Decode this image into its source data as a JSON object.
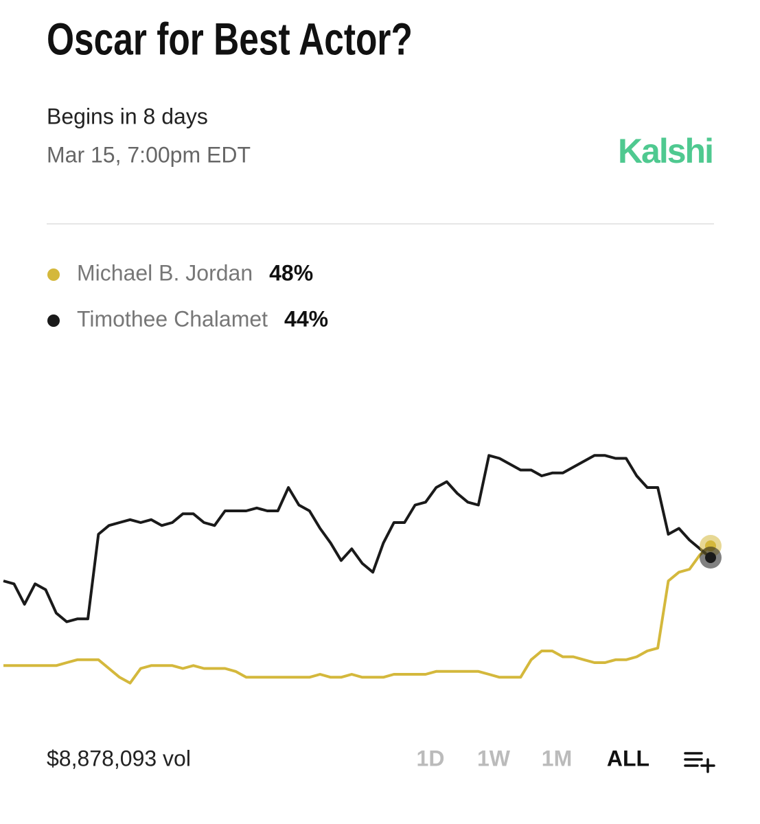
{
  "chart_data": {
    "type": "line",
    "title": "Oscar for Best Actor?",
    "status": "Begins in 8 days",
    "date": "Mar 15, 7:00pm EDT",
    "brand": "Kalshi",
    "volume": "$8,878,093 vol",
    "ranges": [
      "1D",
      "1W",
      "1M",
      "ALL"
    ],
    "active_range": "ALL",
    "ylim": [
      0,
      100
    ],
    "series": [
      {
        "name": "Michael B. Jordan",
        "color": "#d4b83c",
        "value_label": "48%",
        "values": [
          7,
          7,
          7,
          7,
          7,
          7,
          8,
          9,
          9,
          9,
          6,
          3,
          1,
          6,
          7,
          7,
          7,
          6,
          7,
          6,
          6,
          6,
          5,
          3,
          3,
          3,
          3,
          3,
          3,
          3,
          4,
          3,
          3,
          4,
          3,
          3,
          3,
          4,
          4,
          4,
          4,
          5,
          5,
          5,
          5,
          5,
          4,
          3,
          3,
          3,
          9,
          12,
          12,
          10,
          10,
          9,
          8,
          8,
          9,
          9,
          10,
          12,
          13,
          36,
          39,
          40,
          45,
          48
        ]
      },
      {
        "name": "Timothee Chalamet",
        "color": "#1a1a1a",
        "value_label": "44%",
        "values": [
          36,
          35,
          28,
          35,
          33,
          25,
          22,
          23,
          23,
          52,
          55,
          56,
          57,
          56,
          57,
          55,
          56,
          59,
          59,
          56,
          55,
          60,
          60,
          60,
          61,
          60,
          60,
          68,
          62,
          60,
          54,
          49,
          43,
          47,
          42,
          39,
          49,
          56,
          56,
          62,
          63,
          68,
          70,
          66,
          63,
          62,
          79,
          78,
          76,
          74,
          74,
          72,
          73,
          73,
          75,
          77,
          79,
          79,
          78,
          78,
          72,
          68,
          68,
          52,
          54,
          50,
          47,
          44
        ]
      }
    ]
  }
}
